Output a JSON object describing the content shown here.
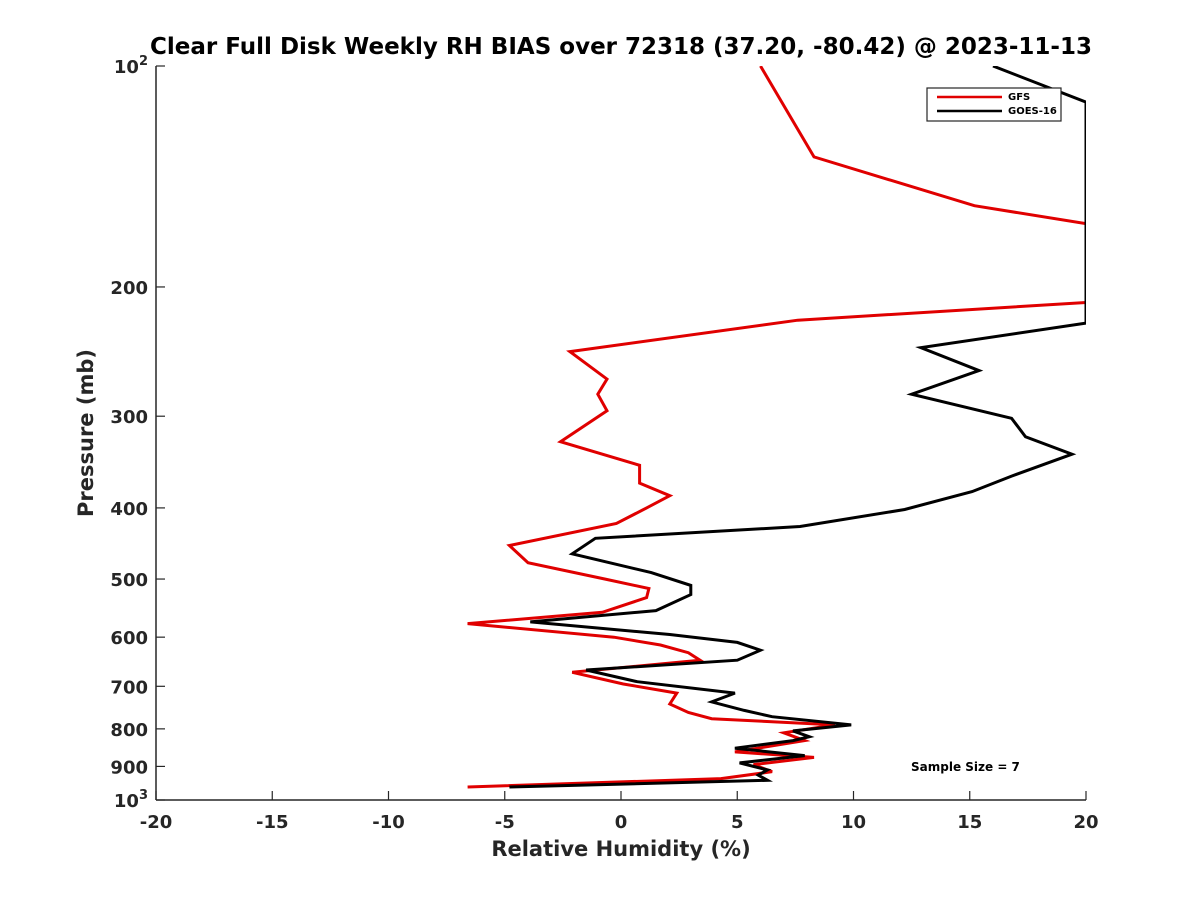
{
  "chart_data": {
    "type": "line",
    "title": "Clear Full Disk Weekly RH BIAS over 72318 (37.20, -80.42) @ 2023-11-13",
    "xlabel": "Relative Humidity (%)",
    "ylabel": "Pressure (mb)",
    "xlim": [
      -20,
      20
    ],
    "ylim": [
      1000,
      100
    ],
    "yscale": "log",
    "x_ticks": [
      -20,
      -15,
      -10,
      -5,
      0,
      5,
      10,
      15,
      20
    ],
    "x_tick_labels": [
      "-20",
      "-15",
      "-10",
      "-5",
      "0",
      "5",
      "10",
      "15",
      "20"
    ],
    "y_ticks": [
      100,
      200,
      300,
      400,
      500,
      600,
      700,
      800,
      900,
      1000
    ],
    "y_tick_labels": [
      {
        "base": "10",
        "sup": "2"
      },
      {
        "base": "200",
        "sup": ""
      },
      {
        "base": "300",
        "sup": ""
      },
      {
        "base": "400",
        "sup": ""
      },
      {
        "base": "500",
        "sup": ""
      },
      {
        "base": "600",
        "sup": ""
      },
      {
        "base": "700",
        "sup": ""
      },
      {
        "base": "800",
        "sup": ""
      },
      {
        "base": "900",
        "sup": ""
      },
      {
        "base": "10",
        "sup": "3"
      }
    ],
    "grid": false,
    "legend_position": "top-right",
    "annotation": "Sample Size = 7",
    "series": [
      {
        "name": "GFS",
        "color": "#e00000",
        "points": [
          [
            6.0,
            100
          ],
          [
            8.3,
            133
          ],
          [
            15.2,
            155
          ],
          [
            20.0,
            164
          ],
          [
            20.0,
            210
          ],
          [
            7.6,
            222
          ],
          [
            -2.2,
            245
          ],
          [
            -0.6,
            267
          ],
          [
            -1.0,
            280
          ],
          [
            -0.6,
            295
          ],
          [
            -2.6,
            325
          ],
          [
            0.8,
            350
          ],
          [
            0.8,
            370
          ],
          [
            2.1,
            385
          ],
          [
            1.1,
            400
          ],
          [
            -0.2,
            420
          ],
          [
            -4.8,
            450
          ],
          [
            -4.0,
            475
          ],
          [
            -0.7,
            500
          ],
          [
            1.2,
            515
          ],
          [
            1.1,
            530
          ],
          [
            -0.8,
            555
          ],
          [
            -6.6,
            575
          ],
          [
            -0.3,
            600
          ],
          [
            1.7,
            615
          ],
          [
            2.9,
            630
          ],
          [
            3.4,
            645
          ],
          [
            -2.1,
            670
          ],
          [
            0.1,
            695
          ],
          [
            2.4,
            715
          ],
          [
            2.1,
            740
          ],
          [
            2.9,
            760
          ],
          [
            3.9,
            775
          ],
          [
            9.2,
            790
          ],
          [
            7.0,
            810
          ],
          [
            7.9,
            830
          ],
          [
            4.9,
            860
          ],
          [
            8.3,
            875
          ],
          [
            5.7,
            895
          ],
          [
            6.5,
            915
          ],
          [
            4.3,
            935
          ],
          [
            -6.6,
            960
          ]
        ]
      },
      {
        "name": "GOES-16",
        "color": "#000000",
        "points": [
          [
            16.0,
            100
          ],
          [
            20.0,
            112
          ],
          [
            20.0,
            224
          ],
          [
            12.9,
            242
          ],
          [
            15.4,
            260
          ],
          [
            12.5,
            280
          ],
          [
            16.8,
            302
          ],
          [
            17.4,
            320
          ],
          [
            19.4,
            338
          ],
          [
            16.8,
            362
          ],
          [
            15.1,
            380
          ],
          [
            12.2,
            402
          ],
          [
            7.7,
            424
          ],
          [
            -1.1,
            440
          ],
          [
            -2.1,
            462
          ],
          [
            1.3,
            490
          ],
          [
            3.0,
            510
          ],
          [
            3.0,
            525
          ],
          [
            1.5,
            552
          ],
          [
            -3.9,
            572
          ],
          [
            2.1,
            595
          ],
          [
            5.0,
            610
          ],
          [
            6.0,
            625
          ],
          [
            5.0,
            645
          ],
          [
            -1.5,
            665
          ],
          [
            0.7,
            690
          ],
          [
            4.9,
            715
          ],
          [
            3.9,
            735
          ],
          [
            5.3,
            755
          ],
          [
            6.5,
            770
          ],
          [
            9.9,
            790
          ],
          [
            7.4,
            805
          ],
          [
            8.1,
            820
          ],
          [
            7.4,
            830
          ],
          [
            4.9,
            850
          ],
          [
            7.9,
            870
          ],
          [
            5.1,
            890
          ],
          [
            6.3,
            910
          ],
          [
            5.9,
            925
          ],
          [
            6.3,
            940
          ],
          [
            -4.8,
            960
          ]
        ]
      }
    ]
  }
}
